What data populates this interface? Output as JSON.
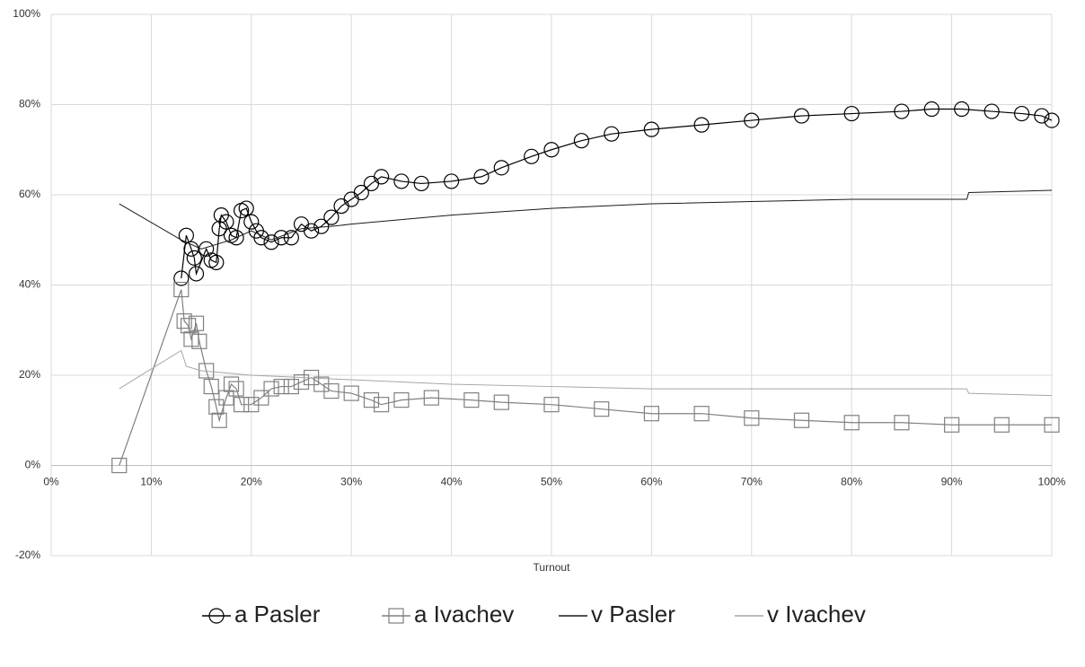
{
  "chart_data": {
    "type": "scatter",
    "x_label": "Turnout",
    "xlim": [
      0,
      100
    ],
    "ylim": [
      -20,
      100
    ],
    "xticks": [
      {
        "value": 0,
        "label": "0%"
      },
      {
        "value": 10,
        "label": "10%"
      },
      {
        "value": 20,
        "label": "20%"
      },
      {
        "value": 30,
        "label": "30%"
      },
      {
        "value": 40,
        "label": "40%"
      },
      {
        "value": 50,
        "label": "50%"
      },
      {
        "value": 60,
        "label": "60%"
      },
      {
        "value": 70,
        "label": "70%"
      },
      {
        "value": 80,
        "label": "80%"
      },
      {
        "value": 90,
        "label": "90%"
      },
      {
        "value": 100,
        "label": "100%"
      }
    ],
    "yticks": [
      {
        "value": -20,
        "label": "-20%"
      },
      {
        "value": 0,
        "label": "0%"
      },
      {
        "value": 20,
        "label": "20%"
      },
      {
        "value": 40,
        "label": "40%"
      },
      {
        "value": 60,
        "label": "60%"
      },
      {
        "value": 80,
        "label": "80%"
      },
      {
        "value": 100,
        "label": "100%"
      }
    ],
    "grid": true,
    "legend": "bottom",
    "series": [
      {
        "name": "a Pasler",
        "color": "#000000",
        "marker": "circle",
        "x": [
          13,
          13.5,
          14,
          14.3,
          14.5,
          15.5,
          16,
          16.5,
          16.8,
          17,
          17.5,
          18,
          18.5,
          19,
          19.5,
          20,
          20.5,
          21,
          22,
          23,
          24,
          25,
          26,
          27,
          28,
          29,
          30,
          31,
          32,
          33,
          35,
          37,
          40,
          43,
          45,
          48,
          50,
          53,
          56,
          60,
          65,
          70,
          75,
          80,
          85,
          88,
          91,
          94,
          97,
          99,
          100
        ],
        "values": [
          41.5,
          51,
          48,
          46,
          42.5,
          48,
          45.5,
          45,
          52.5,
          55.5,
          54,
          51,
          50.5,
          56.5,
          57,
          54,
          52,
          50.5,
          49.5,
          50.5,
          50.5,
          53.5,
          52,
          53,
          55,
          57.5,
          59,
          60.5,
          62.5,
          64,
          63,
          62.5,
          63,
          64,
          66,
          68.5,
          70,
          72,
          73.5,
          74.5,
          75.5,
          76.5,
          77.5,
          78,
          78.5,
          79,
          79,
          78.5,
          78,
          77.5,
          76.5
        ]
      },
      {
        "name": "a Ivachev",
        "color": "#808080",
        "marker": "square",
        "x": [
          6.8,
          13,
          13.3,
          13.7,
          14,
          14.5,
          14.8,
          15.5,
          16,
          16.5,
          16.8,
          17.5,
          18,
          18.5,
          19,
          20,
          21,
          22,
          23,
          24,
          25,
          26,
          27,
          28,
          30,
          32,
          33,
          35,
          38,
          42,
          45,
          50,
          55,
          60,
          65,
          70,
          75,
          80,
          85,
          90,
          95,
          100
        ],
        "values": [
          0,
          39,
          32,
          31,
          28,
          31.5,
          27.5,
          21,
          17.5,
          13,
          10,
          15,
          18,
          17,
          13.5,
          13.5,
          15,
          17,
          17.5,
          17.5,
          18.5,
          19.5,
          18,
          16.5,
          16,
          14.5,
          13.5,
          14.5,
          15,
          14.5,
          14,
          13.5,
          12.5,
          11.5,
          11.5,
          10.5,
          10,
          9.5,
          9.5,
          9,
          9,
          9
        ]
      },
      {
        "name": "v Pasler",
        "color": "#1a1a1a",
        "marker": "none",
        "x": [
          6.8,
          13,
          15,
          18,
          20,
          22,
          25,
          28,
          30,
          40,
          50,
          60,
          70,
          80,
          91.5,
          91.7,
          100
        ],
        "values": [
          58,
          50,
          48,
          50,
          52,
          50,
          52.5,
          53,
          53.5,
          55.5,
          57,
          58,
          58.5,
          59,
          59,
          60.5,
          61
        ]
      },
      {
        "name": "v Ivachev",
        "color": "#a6a6a6",
        "marker": "none",
        "x": [
          6.8,
          13,
          13.5,
          15,
          20,
          25,
          30,
          40,
          50,
          60,
          70,
          80,
          91.5,
          91.7,
          100
        ],
        "values": [
          17,
          25.5,
          22,
          21,
          20,
          19.5,
          19,
          18,
          17.5,
          17,
          17,
          17,
          17,
          16,
          15.5
        ]
      }
    ]
  }
}
